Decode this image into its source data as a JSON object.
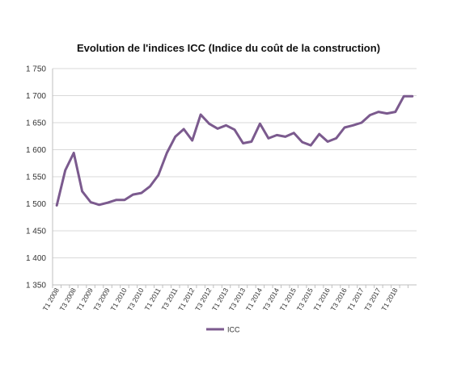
{
  "chart_data": {
    "type": "line",
    "title": "Evolution de l'indices ICC (Indice du coût de la construction)",
    "xlabel": "",
    "ylabel": "",
    "ylim": [
      1350,
      1750
    ],
    "yticks": [
      "1 350",
      "1 400",
      "1 450",
      "1 500",
      "1 550",
      "1 600",
      "1 650",
      "1 700",
      "1 750"
    ],
    "ytick_values": [
      1350,
      1400,
      1450,
      1500,
      1550,
      1600,
      1650,
      1700,
      1750
    ],
    "x": [
      "T1 2008",
      "T2 2008",
      "T3 2008",
      "T4 2008",
      "T1 2009",
      "T2 2009",
      "T3 2009",
      "T4 2009",
      "T1 2010",
      "T2 2010",
      "T3 2010",
      "T4 2010",
      "T1 2011",
      "T2 2011",
      "T3 2011",
      "T4 2011",
      "T1 2012",
      "T2 2012",
      "T3 2012",
      "T4 2012",
      "T1 2013",
      "T2 2013",
      "T3 2013",
      "T4 2013",
      "T1 2014",
      "T2 2014",
      "T3 2014",
      "T4 2014",
      "T1 2015",
      "T2 2015",
      "T3 2015",
      "T4 2015",
      "T1 2016",
      "T2 2016",
      "T3 2016",
      "T4 2016",
      "T1 2017",
      "T2 2017",
      "T3 2017",
      "T4 2017",
      "T1 2018",
      "T2 2018",
      "T3 2018"
    ],
    "xtick_labels": [
      "T1 2008",
      "T3 2008",
      "T1 2009",
      "T3 2009",
      "T1 2010",
      "T3 2010",
      "T1 2011",
      "T3 2011",
      "T1 2012",
      "T3 2012",
      "T1 2013",
      "T3 2013",
      "T1 2014",
      "T3 2014",
      "T1 2015",
      "T3 2015",
      "T1 2016",
      "T3 2016",
      "T1 2017",
      "T3 2017",
      "T1 2018"
    ],
    "series": [
      {
        "name": "ICC",
        "color": "#7b5a8e",
        "values": [
          1497,
          1562,
          1594,
          1523,
          1503,
          1498,
          1502,
          1507,
          1507,
          1517,
          1520,
          1532,
          1553,
          1594,
          1624,
          1638,
          1617,
          1665,
          1648,
          1639,
          1645,
          1637,
          1612,
          1615,
          1648,
          1621,
          1627,
          1624,
          1631,
          1614,
          1608,
          1629,
          1615,
          1621,
          1641,
          1645,
          1650,
          1664,
          1670,
          1667,
          1670,
          1699,
          1699
        ]
      }
    ],
    "grid": true,
    "legend_position": "bottom"
  }
}
